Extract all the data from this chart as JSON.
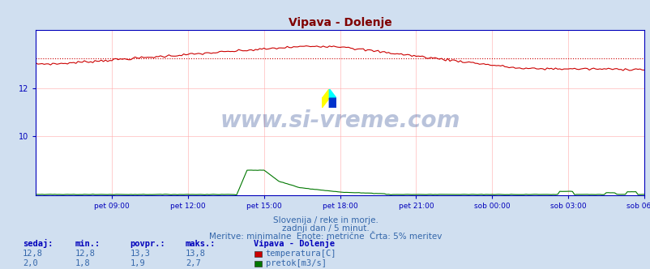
{
  "title": "Vipava - Dolenje",
  "title_color": "#800000",
  "bg_color": "#d0dff0",
  "plot_bg_color": "#ffffff",
  "grid_color": "#ffaaaa",
  "axis_color": "#0000bb",
  "text_color": "#3366aa",
  "watermark_text": "www.si-vreme.com",
  "watermark_color": "#1a3a8a",
  "temp_color": "#cc0000",
  "temp_avg_color": "#cc0000",
  "flow_color": "#007700",
  "xlim": [
    0,
    288
  ],
  "temp_ylim": [
    7.5,
    14.5
  ],
  "temp_yticks": [
    10,
    12
  ],
  "flow_scale": 14.5,
  "x_tick_labels": [
    "pet 09:00",
    "pet 12:00",
    "pet 15:00",
    "pet 18:00",
    "pet 21:00",
    "sob 00:00",
    "sob 03:00",
    "sob 06:00"
  ],
  "x_tick_positions": [
    36,
    72,
    108,
    144,
    180,
    216,
    252,
    288
  ],
  "subtitle1": "Slovenija / reke in morje.",
  "subtitle2": "zadnji dan / 5 minut.",
  "subtitle3": "Meritve: minimalne  Enote: metrične  Črta: 5% meritev",
  "table_headers": [
    "sedaj:",
    "min.:",
    "povpr.:",
    "maks.:"
  ],
  "table_header_color": "#0000bb",
  "station_name": "Vipava - Dolenje",
  "temp_row": [
    "12,8",
    "12,8",
    "13,3",
    "13,8"
  ],
  "flow_row": [
    "2,0",
    "1,8",
    "1,9",
    "2,7"
  ],
  "temp_label": "temperatura[C]",
  "flow_label": "pretok[m3/s]",
  "temp_avg_value": 13.3,
  "temp_min_value": 12.8,
  "temp_max_value": 13.8,
  "flow_avg_value": 1.9,
  "flow_min_value": 1.8,
  "flow_max_value": 2.7,
  "flow_display_max": 3.5
}
